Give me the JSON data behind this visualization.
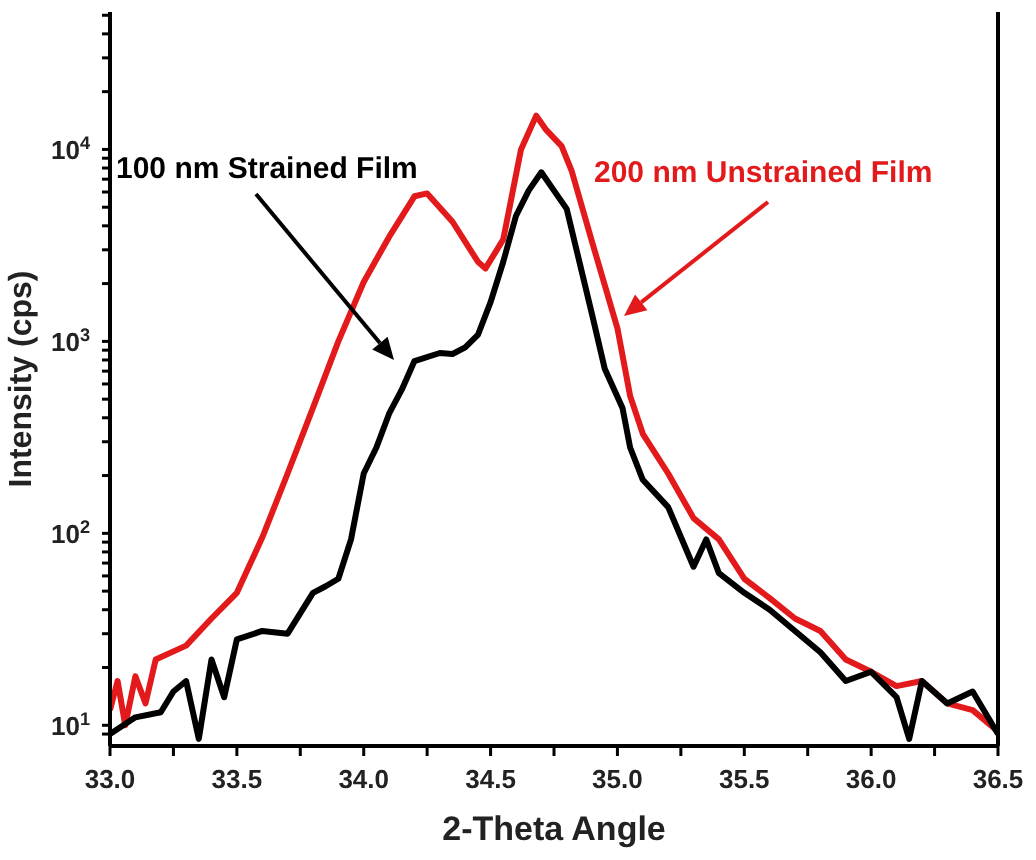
{
  "chart_data": {
    "type": "line",
    "xlabel": "2-Theta Angle",
    "ylabel": "Intensity (cps)",
    "log": "y",
    "xlim": [
      33.0,
      36.5
    ],
    "ylim": [
      7.8,
      52000
    ],
    "xticks": [
      {
        "value": 33.0,
        "label": "33.0"
      },
      {
        "value": 33.25,
        "label": null
      },
      {
        "value": 33.5,
        "label": "33.5"
      },
      {
        "value": 33.75,
        "label": null
      },
      {
        "value": 34.0,
        "label": "34.0"
      },
      {
        "value": 34.25,
        "label": null
      },
      {
        "value": 34.5,
        "label": "34.5"
      },
      {
        "value": 34.75,
        "label": null
      },
      {
        "value": 35.0,
        "label": "35.0"
      },
      {
        "value": 35.25,
        "label": null
      },
      {
        "value": 35.5,
        "label": "35.5"
      },
      {
        "value": 35.75,
        "label": null
      },
      {
        "value": 36.0,
        "label": "36.0"
      },
      {
        "value": 36.25,
        "label": null
      },
      {
        "value": 36.5,
        "label": "36.5"
      }
    ],
    "yticks": [
      {
        "value": 9,
        "label": null
      },
      {
        "value": 10,
        "label": "10$^{1}$"
      },
      {
        "value": 20,
        "label": null
      },
      {
        "value": 30,
        "label": null
      },
      {
        "value": 40,
        "label": null
      },
      {
        "value": 50,
        "label": null
      },
      {
        "value": 60,
        "label": null
      },
      {
        "value": 70,
        "label": null
      },
      {
        "value": 80,
        "label": null
      },
      {
        "value": 90,
        "label": null
      },
      {
        "value": 100,
        "label": "10$^{2}$"
      },
      {
        "value": 200,
        "label": null
      },
      {
        "value": 300,
        "label": null
      },
      {
        "value": 400,
        "label": null
      },
      {
        "value": 500,
        "label": null
      },
      {
        "value": 600,
        "label": null
      },
      {
        "value": 700,
        "label": null
      },
      {
        "value": 800,
        "label": null
      },
      {
        "value": 900,
        "label": null
      },
      {
        "value": 1000,
        "label": "10$^{3}$"
      },
      {
        "value": 2000,
        "label": null
      },
      {
        "value": 3000,
        "label": null
      },
      {
        "value": 4000,
        "label": null
      },
      {
        "value": 5000,
        "label": null
      },
      {
        "value": 6000,
        "label": null
      },
      {
        "value": 7000,
        "label": null
      },
      {
        "value": 8000,
        "label": null
      },
      {
        "value": 9000,
        "label": null
      },
      {
        "value": 10000,
        "label": "10$^{4}$"
      },
      {
        "value": 20000,
        "label": null
      },
      {
        "value": 30000,
        "label": null
      },
      {
        "value": 40000,
        "label": null
      },
      {
        "value": 50000,
        "label": null
      }
    ],
    "series": [
      {
        "name": "200 nm Unstrained Film",
        "color": "#e31a1c",
        "x": [
          33.0,
          33.03,
          33.06,
          33.1,
          33.14,
          33.18,
          33.3,
          33.4,
          33.5,
          33.6,
          33.7,
          33.8,
          33.9,
          34.0,
          34.1,
          34.2,
          34.25,
          34.35,
          34.45,
          34.48,
          34.55,
          34.62,
          34.68,
          34.72,
          34.78,
          34.82,
          34.9,
          35.0,
          35.05,
          35.1,
          35.2,
          35.3,
          35.4,
          35.5,
          35.6,
          35.7,
          35.8,
          35.9,
          36.0,
          36.1,
          36.2,
          36.3,
          36.4,
          36.5
        ],
        "values": [
          12,
          17,
          10,
          18,
          13,
          22,
          26,
          36,
          49,
          95,
          205,
          450,
          1000,
          2040,
          3500,
          5700,
          5900,
          4200,
          2600,
          2400,
          3400,
          10000,
          15000,
          12600,
          10400,
          7700,
          3300,
          1170,
          520,
          330,
          205,
          120,
          93,
          58,
          46,
          36,
          31,
          22,
          19,
          16,
          17,
          13,
          12,
          9.3
        ]
      },
      {
        "name": "100 nm Strained Film",
        "color": "#000000",
        "x": [
          33.0,
          33.1,
          33.2,
          33.25,
          33.3,
          33.35,
          33.4,
          33.45,
          33.5,
          33.6,
          33.7,
          33.8,
          33.85,
          33.9,
          33.95,
          34.0,
          34.05,
          34.1,
          34.15,
          34.2,
          34.3,
          34.35,
          34.4,
          34.45,
          34.5,
          34.55,
          34.6,
          34.65,
          34.7,
          34.75,
          34.8,
          34.85,
          34.9,
          34.95,
          35.02,
          35.05,
          35.1,
          35.2,
          35.3,
          35.35,
          35.4,
          35.5,
          35.6,
          35.7,
          35.8,
          35.9,
          36.0,
          36.1,
          36.15,
          36.2,
          36.3,
          36.4,
          36.5
        ],
        "values": [
          9,
          11,
          11.7,
          15,
          17,
          8.5,
          22,
          14,
          28,
          31,
          30,
          49,
          53,
          58,
          93,
          205,
          280,
          420,
          560,
          790,
          870,
          860,
          930,
          1080,
          1600,
          2600,
          4500,
          6100,
          7600,
          6100,
          4900,
          2600,
          1380,
          720,
          450,
          280,
          190,
          137,
          67,
          93,
          62,
          49,
          40,
          31,
          24,
          17,
          19,
          14,
          8.5,
          17,
          13,
          15,
          9
        ]
      }
    ]
  }
}
